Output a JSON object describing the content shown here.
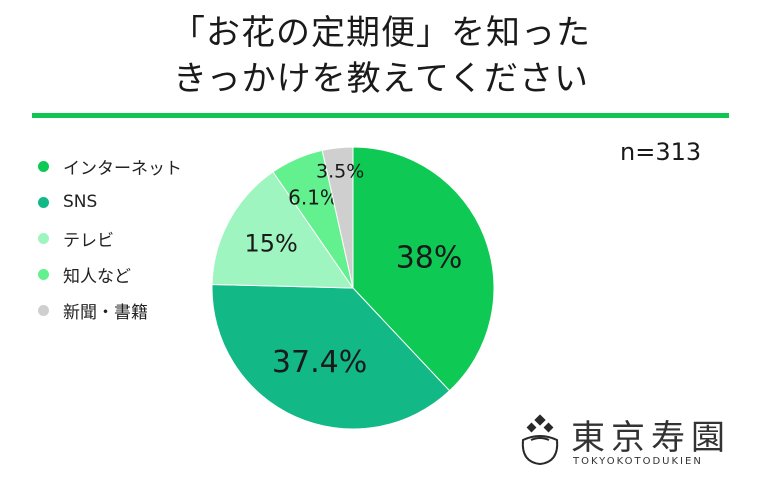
{
  "title": {
    "line1": "「お花の定期便」を知った",
    "line2": "きっかけを教えてください"
  },
  "sample_size": "n=313",
  "colors": {
    "rule": "#11c552"
  },
  "logo": {
    "text_jp": "東京寿園",
    "text_en": "TOKYOKOTODUKIEN",
    "icon": "flower-basket-icon"
  },
  "chart_data": {
    "type": "pie",
    "title": "「お花の定期便」を知ったきっかけを教えてください",
    "legend_position": "left",
    "slices": [
      {
        "name": "インターネット",
        "value": 38,
        "label": "38%",
        "color": "#0fc955"
      },
      {
        "name": "SNS",
        "value": 37.4,
        "label": "37.4%",
        "color": "#12b886"
      },
      {
        "name": "テレビ",
        "value": 15,
        "label": "15%",
        "color": "#9ff5bf"
      },
      {
        "name": "知人など",
        "value": 6.1,
        "label": "6.1%",
        "color": "#63f08f"
      },
      {
        "name": "新聞・書籍",
        "value": 3.5,
        "label": "3.5%",
        "color": "#cfcfcf"
      }
    ]
  }
}
